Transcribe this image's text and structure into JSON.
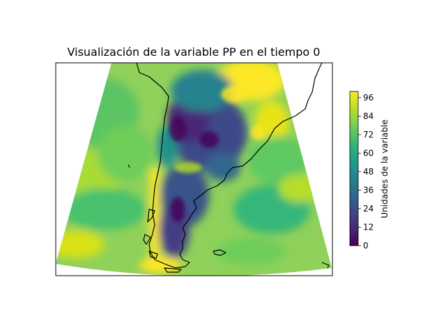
{
  "title": "Visualización de la variable PP en el tiempo 0",
  "colorbar": {
    "label": "Unidades de la variable",
    "ticks": [
      0,
      12,
      24,
      36,
      48,
      60,
      72,
      84,
      96
    ],
    "min": 0,
    "max": 100,
    "colormap": "viridis"
  },
  "map": {
    "region": "South America (southern cone)",
    "field": "PP",
    "time": 0
  },
  "colors": {
    "viridis": [
      "#440154",
      "#482878",
      "#3e4989",
      "#31688e",
      "#26828e",
      "#1f9e89",
      "#35b779",
      "#6ece58",
      "#b5de2b",
      "#fde725"
    ]
  }
}
